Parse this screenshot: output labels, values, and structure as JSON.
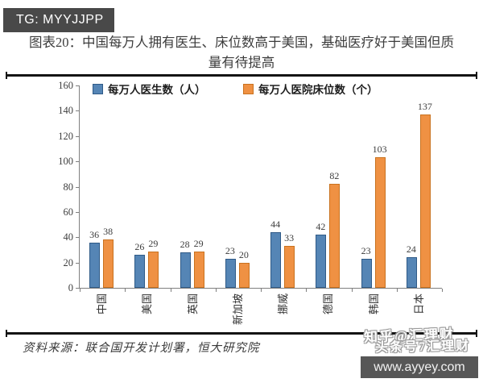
{
  "header": {
    "badge": "TG: MYYJJPP"
  },
  "title": {
    "line1": "图表20：中国每万人拥有医生、床位数高于美国，基础医疗好于美国但质",
    "line2": "量有待提高"
  },
  "chart_data": {
    "type": "bar",
    "categories": [
      "中国",
      "美国",
      "英国",
      "新加坡",
      "挪威",
      "德国",
      "韩国",
      "日本"
    ],
    "series": [
      {
        "name": "每万人医生数（人）",
        "color": "#5585b5",
        "border": "#2f5a87",
        "values": [
          36,
          26,
          28,
          23,
          44,
          42,
          23,
          24
        ]
      },
      {
        "name": "每万人医院床位数（个）",
        "color": "#ef9143",
        "border": "#c9721f",
        "values": [
          38,
          29,
          29,
          20,
          33,
          82,
          103,
          137
        ]
      }
    ],
    "ylim": [
      0,
      160
    ],
    "yticks": [
      0,
      20,
      40,
      60,
      80,
      100,
      120,
      140,
      160
    ],
    "grid": false,
    "legend_position": "top",
    "bar_value_labels": true,
    "category_label_rotation": -90
  },
  "footer": {
    "source": "资料来源：联合国开发计划署，恒大研究院"
  },
  "watermarks": {
    "line1": "知乎@汇理财",
    "line2": "头条号7汇理财",
    "site": "www.ayyey.com"
  },
  "colors": {
    "badge_bg": "#494949",
    "url_box_bg": "#575757",
    "rule": "#141414",
    "axis": "#7f7f7f",
    "text": "#3d3d3d"
  }
}
